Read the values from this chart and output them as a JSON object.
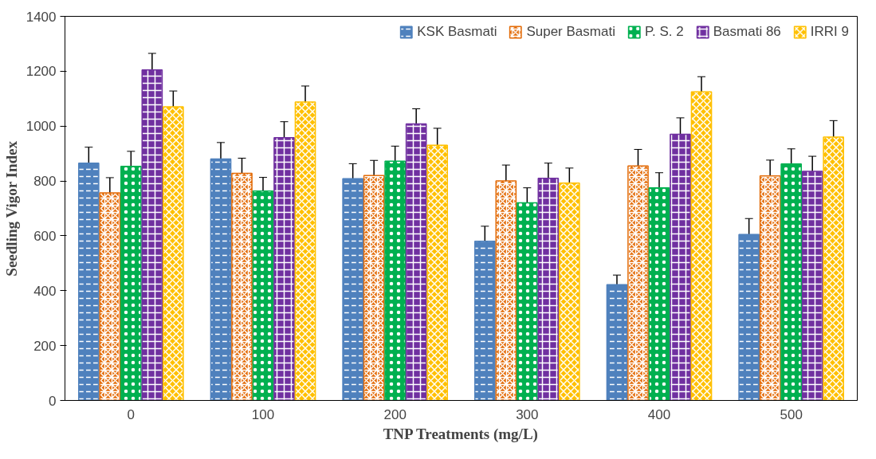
{
  "chart_data": {
    "type": "bar",
    "xlabel": "TNP Treatments (mg/L)",
    "ylabel": "Seedling Vigor Index",
    "categories": [
      "0",
      "100",
      "200",
      "300",
      "400",
      "500"
    ],
    "series": [
      {
        "name": "KSK Basmati",
        "color": "#4f81bd",
        "values": [
          865,
          880,
          808,
          580,
          422,
          605
        ],
        "errors": [
          58,
          60,
          55,
          55,
          35,
          58
        ]
      },
      {
        "name": "Super Basmati",
        "color": "#e36c09",
        "values": [
          757,
          828,
          820,
          800,
          855,
          818
        ],
        "errors": [
          55,
          55,
          55,
          58,
          60,
          58
        ]
      },
      {
        "name": "P. S. 2",
        "color": "#00b050",
        "values": [
          853,
          763,
          872,
          720,
          775,
          862
        ],
        "errors": [
          55,
          50,
          55,
          55,
          55,
          55
        ]
      },
      {
        "name": "Basmati 86",
        "color": "#7030a0",
        "values": [
          1205,
          958,
          1008,
          810,
          970,
          835
        ],
        "errors": [
          60,
          58,
          55,
          55,
          60,
          55
        ]
      },
      {
        "name": "IRRI 9",
        "color": "#ffc000",
        "values": [
          1070,
          1088,
          930,
          792,
          1125,
          960
        ],
        "errors": [
          58,
          58,
          62,
          55,
          55,
          60
        ]
      }
    ],
    "ylim": [
      0,
      1400
    ],
    "yticks": [
      0,
      200,
      400,
      600,
      800,
      1000,
      1200,
      1400
    ],
    "legend": "top",
    "grid": false
  }
}
